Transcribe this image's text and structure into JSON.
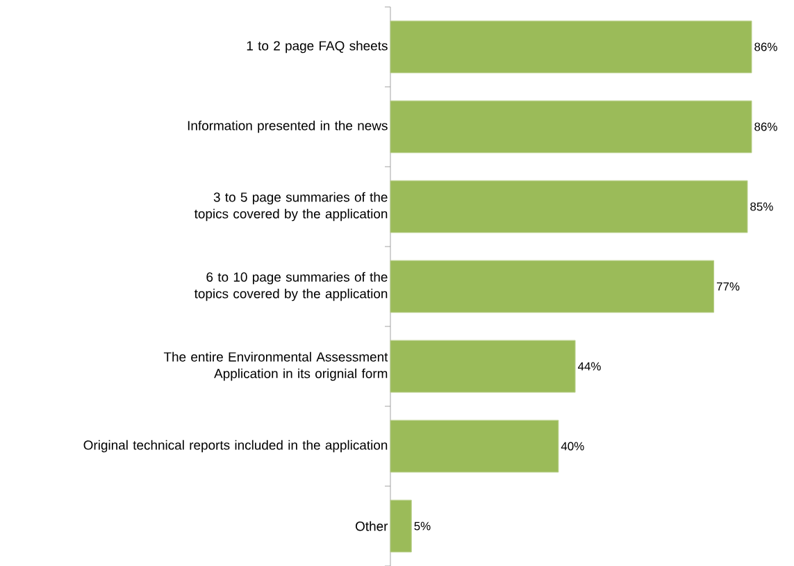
{
  "chart_data": {
    "type": "bar",
    "orientation": "horizontal",
    "categories": [
      "1 to 2 page FAQ sheets",
      "Information presented in the news",
      "3 to 5 page summaries of the topics covered by the application",
      "6 to 10 page summaries of the topics covered by the application",
      "The entire Environmental Assessment Application in its orignial form",
      "Original technical reports included in the application",
      "Other"
    ],
    "values": [
      86,
      86,
      85,
      77,
      44,
      40,
      5
    ],
    "value_labels": [
      "86%",
      "86%",
      "85%",
      "77%",
      "44%",
      "40%",
      "5%"
    ],
    "color": "#9bbb59"
  }
}
